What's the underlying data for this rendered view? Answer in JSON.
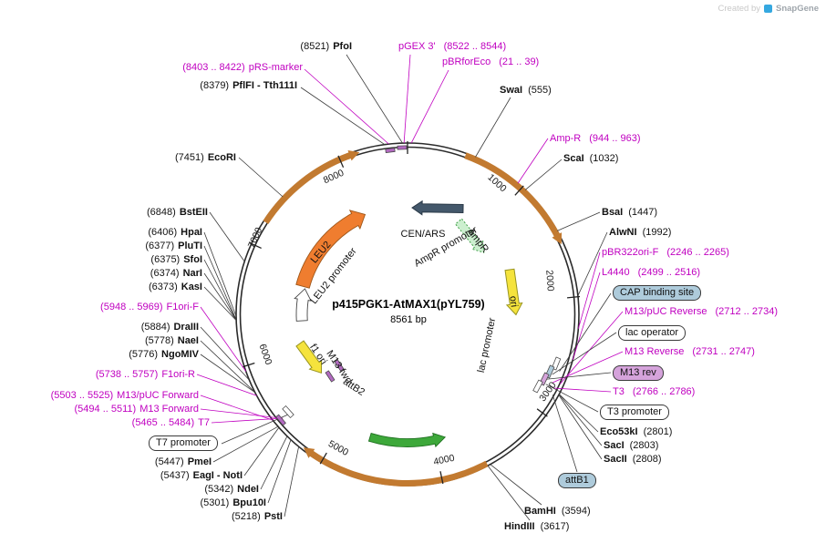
{
  "watermark": {
    "prefix": "Created by",
    "brand": "SnapGene"
  },
  "plasmid": {
    "name": "p415PGK1-AtMAX1(pYL759)",
    "size": "8561 bp"
  },
  "colors": {
    "primer_magenta": "#C000C0",
    "enzyme_black": "#111111",
    "ring": "#2B2B2B",
    "leu2_orange": "#EF7D2F",
    "cassette_orange": "#C27A30",
    "ori_yellow": "#F5E33D",
    "ampr_green": "#CCEFCF",
    "cen_ars_slate": "#44586B",
    "cds_green": "#3DA83A",
    "box_blue": "#AECBDB",
    "box_plum": "#D5A3DB"
  },
  "ticks": [
    {
      "label": "1000"
    },
    {
      "label": "2000"
    },
    {
      "label": "3000"
    },
    {
      "label": "4000"
    },
    {
      "label": "5000"
    },
    {
      "label": "6000"
    },
    {
      "label": "7000"
    },
    {
      "label": "8000"
    }
  ],
  "features": {
    "leu2": "LEU2",
    "leu2_promoter": "LEU2 promoter",
    "cen_ars": "CEN/ARS",
    "ampr_promoter": "AmpR promoter",
    "ampr": "AmpR",
    "ori": "ori",
    "lac_promoter": "lac promoter",
    "f1_ori": "f1 ori",
    "m13_fwd": "M13 fwd",
    "attb2": "attB2"
  },
  "boxes": {
    "cap": "CAP binding site",
    "lac_operator": "lac operator",
    "m13_rev": "M13 rev",
    "t3_promoter": "T3 promoter",
    "attb1": "attB1",
    "t7_promoter": "T7 promoter"
  },
  "sites_left": [
    {
      "pos": "(8521)",
      "name": "PfoI"
    },
    {
      "pos": "(8379)",
      "name": "PflFI - Tth111I"
    },
    {
      "pos": "(7451)",
      "name": "EcoRI"
    },
    {
      "pos": "(6848)",
      "name": "BstEII"
    },
    {
      "pos": "(6406)",
      "name": "HpaI"
    },
    {
      "pos": "(6377)",
      "name": "PluTI"
    },
    {
      "pos": "(6375)",
      "name": "SfoI"
    },
    {
      "pos": "(6374)",
      "name": "NarI"
    },
    {
      "pos": "(6373)",
      "name": "KasI"
    },
    {
      "pos": "(5884)",
      "name": "DraIII"
    },
    {
      "pos": "(5778)",
      "name": "NaeI"
    },
    {
      "pos": "(5776)",
      "name": "NgoMIV"
    },
    {
      "pos": "(5447)",
      "name": "PmeI"
    },
    {
      "pos": "(5437)",
      "name": "EagI - NotI"
    },
    {
      "pos": "(5342)",
      "name": "NdeI"
    },
    {
      "pos": "(5301)",
      "name": "Bpu10I"
    },
    {
      "pos": "(5218)",
      "name": "PstI"
    }
  ],
  "sites_right": [
    {
      "name": "SwaI",
      "pos": "(555)"
    },
    {
      "name": "ScaI",
      "pos": "(1032)"
    },
    {
      "name": "BsaI",
      "pos": "(1447)"
    },
    {
      "name": "AlwNI",
      "pos": "(1992)"
    },
    {
      "name": "Eco53kI",
      "pos": "(2801)"
    },
    {
      "name": "SacI",
      "pos": "(2803)"
    },
    {
      "name": "SacII",
      "pos": "(2808)"
    },
    {
      "name": "BamHI",
      "pos": "(3594)"
    },
    {
      "name": "HindIII",
      "pos": "(3617)"
    }
  ],
  "primers_left": [
    {
      "pos": "(8403 .. 8422)",
      "name": "pRS-marker"
    },
    {
      "pos": "(5948 .. 5969)",
      "name": "F1ori-F"
    },
    {
      "pos": "(5738 .. 5757)",
      "name": "F1ori-R"
    },
    {
      "pos": "(5503 .. 5525)",
      "name": "M13/pUC Forward"
    },
    {
      "pos": "(5494 .. 5511)",
      "name": "M13 Forward"
    },
    {
      "pos": "(5465 .. 5484)",
      "name": "T7"
    }
  ],
  "primers_right": [
    {
      "name": "pGEX 3'",
      "pos": "(8522 .. 8544)"
    },
    {
      "name": "pBRforEco",
      "pos": "(21 .. 39)"
    },
    {
      "name": "Amp-R",
      "pos": "(944 .. 963)"
    },
    {
      "name": "pBR322ori-F",
      "pos": "(2246 .. 2265)"
    },
    {
      "name": "L4440",
      "pos": "(2499 .. 2516)"
    },
    {
      "name": "M13/pUC Reverse",
      "pos": "(2712 .. 2734)"
    },
    {
      "name": "M13 Reverse",
      "pos": "(2731 .. 2747)"
    },
    {
      "name": "T3",
      "pos": "(2766 .. 2786)"
    }
  ]
}
